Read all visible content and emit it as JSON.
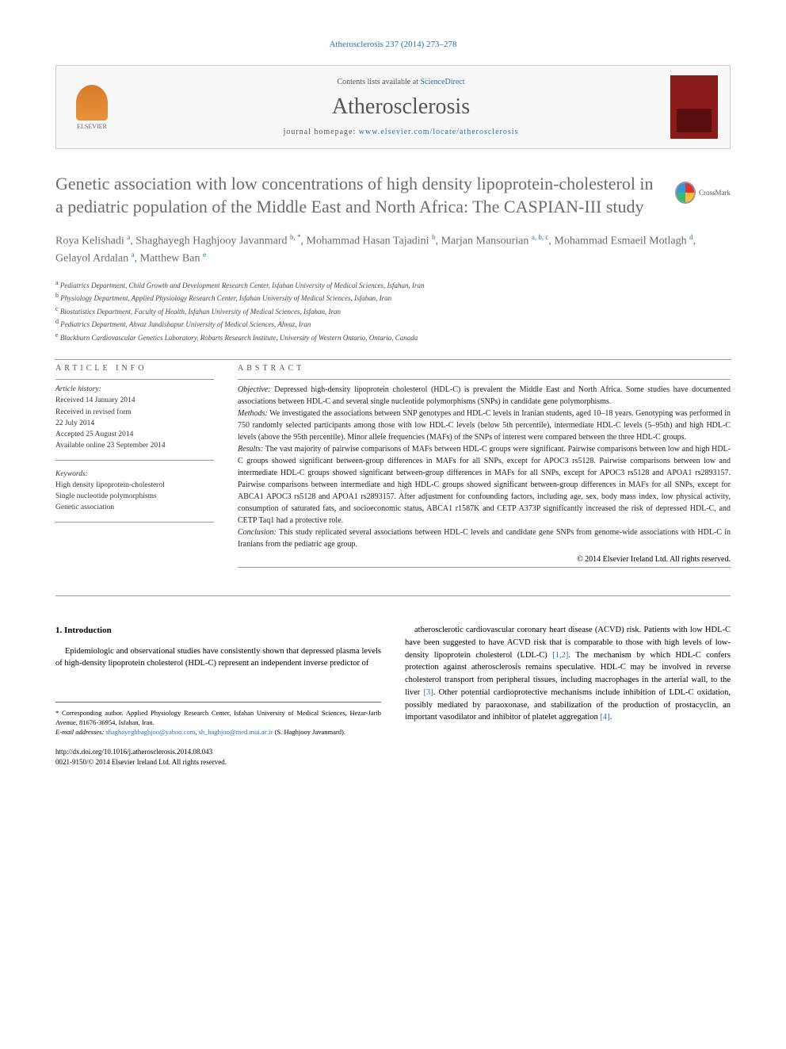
{
  "journal_ref": "Atherosclerosis 237 (2014) 273–278",
  "header": {
    "contents_prefix": "Contents lists available at ",
    "contents_link": "ScienceDirect",
    "journal_name": "Atherosclerosis",
    "homepage_prefix": "journal homepage: ",
    "homepage_url": "www.elsevier.com/locate/atherosclerosis",
    "publisher": "ELSEVIER"
  },
  "crossmark_label": "CrossMark",
  "title": "Genetic association with low concentrations of high density lipoprotein-cholesterol in a pediatric population of the Middle East and North Africa: The CASPIAN-III study",
  "authors_html": "Roya Kelishadi <sup>a</sup>, Shaghayegh Haghjooy Javanmard <sup>b, *</sup>, Mohammad Hasan Tajadini <sup>b</sup>, Marjan Mansourian <sup>a, b, c</sup>, Mohammad Esmaeil Motlagh <sup>d</sup>, Gelayol Ardalan <sup>a</sup>, Matthew Ban <sup>e</sup>",
  "affiliations": [
    {
      "sup": "a",
      "text": "Pediatrics Department, Child Growth and Development Research Center, Isfahan University of Medical Sciences, Isfahan, Iran"
    },
    {
      "sup": "b",
      "text": "Physiology Department, Applied Physiology Research Center, Isfahan University of Medical Sciences, Isfahan, Iran"
    },
    {
      "sup": "c",
      "text": "Biostatistics Department, Faculty of Health, Isfahan University of Medical Sciences, Isfahan, Iran"
    },
    {
      "sup": "d",
      "text": "Pediatrics Department, Ahvaz Jundishapur University of Medical Sciences, Ahvaz, Iran"
    },
    {
      "sup": "e",
      "text": "Blackburn Cardiovascular Genetics Laboratory, Robarts Research Institute, University of Western Ontario, Ontario, Canada"
    }
  ],
  "article_info": {
    "heading": "ARTICLE INFO",
    "history_label": "Article history:",
    "history": [
      "Received 14 January 2014",
      "Received in revised form",
      "22 July 2014",
      "Accepted 25 August 2014",
      "Available online 23 September 2014"
    ],
    "keywords_label": "Keywords:",
    "keywords": [
      "High density lipoprotein-cholesterol",
      "Single nucleotide polymorphisms",
      "Genetic association"
    ]
  },
  "abstract": {
    "heading": "ABSTRACT",
    "sections": [
      {
        "label": "Objective:",
        "text": "Depressed high-density lipoprotein cholesterol (HDL-C) is prevalent the Middle East and North Africa. Some studies have documented associations between HDL-C and several single nucleotide polymorphisms (SNPs) in candidate gene polymorphisms."
      },
      {
        "label": "Methods:",
        "text": "We investigated the associations between SNP genotypes and HDL-C levels in Iranian students, aged 10–18 years. Genotyping was performed in 750 randomly selected participants among those with low HDL-C levels (below 5th percentile), intermediate HDL-C levels (5–95th) and high HDL-C levels (above the 95th percentile). Minor allele frequencies (MAFs) of the SNPs of interest were compared between the three HDL-C groups."
      },
      {
        "label": "Results:",
        "text": "The vast majority of pairwise comparisons of MAFs between HDL-C groups were significant. Pairwise comparisons between low and high HDL-C groups showed significant between-group differences in MAFs for all SNPs, except for APOC3 rs5128. Pairwise comparisons between low and intermediate HDL-C groups showed significant between-group differences in MAFs for all SNPs, except for APOC3 rs5128 and APOA1 rs2893157. Pairwise comparisons between intermediate and high HDL-C groups showed significant between-group differences in MAFs for all SNPs, except for ABCA1 APOC3 rs5128 and APOA1 rs2893157. After adjustment for confounding factors, including age, sex, body mass index, low physical activity, consumption of saturated fats, and socioeconomic status, ABCA1 r1587K and CETP A373P significantly increased the risk of depressed HDL-C, and CETP Taq1 had a protective role."
      },
      {
        "label": "Conclusion:",
        "text": "This study replicated several associations between HDL-C levels and candidate gene SNPs from genome-wide associations with HDL-C in Iranians from the pediatric age group."
      }
    ],
    "copyright": "© 2014 Elsevier Ireland Ltd. All rights reserved."
  },
  "intro": {
    "heading": "1. Introduction",
    "col1": "Epidemiologic and observational studies have consistently shown that depressed plasma levels of high-density lipoprotein cholesterol (HDL-C) represent an independent inverse predictor of",
    "col2_p1": "atherosclerotic cardiovascular coronary heart disease (ACVD) risk. Patients with low HDL-C have been suggested to have ACVD risk that is comparable to those with high levels of low-density lipoprotein cholesterol (LDL-C) ",
    "col2_ref1": "[1,2]",
    "col2_p2": ". The mechanism by which HDL-C confers protection against atherosclerosis remains speculative. HDL-C may be involved in reverse cholesterol transport from peripheral tissues, including macrophages in the arterial wall, to the liver ",
    "col2_ref2": "[3]",
    "col2_p3": ". Other potential cardioprotective mechanisms include inhibition of LDL-C oxidation, possibly mediated by paraoxonase, and stabilization of the production of prostacyclin, an important vasodilator and inhibitor of platelet aggregation ",
    "col2_ref3": "[4]",
    "col2_p4": "."
  },
  "footer": {
    "corresponding": "* Corresponding author. Applied Physiology Research Center, Isfahan University of Medical Sciences, Hezar-Jarib Avenue, 81676-36954, Isfahan, Iran.",
    "email_label": "E-mail addresses:",
    "email1": "shaghayeghhaghjoo@yahoo.com",
    "email2": "sh_haghjoo@med.mui.ac.ir",
    "email_author": "(S. Haghjooy Javanmard).",
    "doi_url": "http://dx.doi.org/10.1016/j.atherosclerosis.2014.08.043",
    "issn_line": "0021-9150/© 2014 Elsevier Ireland Ltd. All rights reserved."
  },
  "colors": {
    "link": "#2a6ebb",
    "title_gray": "#6b6b6b",
    "text": "#222222",
    "bg": "#ffffff"
  }
}
